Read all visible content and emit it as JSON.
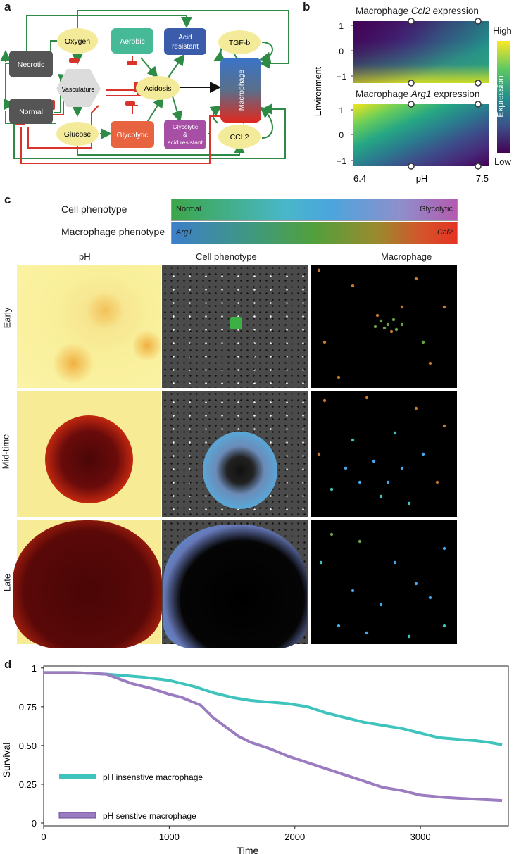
{
  "panels": {
    "a": "a",
    "b": "b",
    "c": "c",
    "d": "d"
  },
  "diagram_a": {
    "nodes": {
      "necrotic": "Necrotic",
      "normal": "Normal",
      "oxygen": "Oxygen",
      "vasculature": "Vasculature",
      "glucose": "Glucose",
      "aerobic": "Aerobic",
      "acidosis": "Acidosis",
      "glycolytic": "Glycolytic",
      "acid_resistant_1": "Acid",
      "acid_resistant_2": "resistant",
      "glyc_acid_1": "Glycolytic",
      "glyc_acid_2": "&",
      "glyc_acid_3": "acid resistant",
      "tgfb": "TGF-b",
      "macrophage": "Macrophage",
      "ccl2": "CCL2"
    },
    "colors": {
      "activation": "#2e8b45",
      "inhibition": "#d9342b",
      "cell_gray": "#555555",
      "aerobic": "#46b996",
      "acid_resistant": "#3b5bab",
      "glycolytic": "#e8633f",
      "glyc_acid": "#a74ea5",
      "yellow_node": "#f4eb9a"
    }
  },
  "heatmaps_b": {
    "top_title_pre": "Macrophage ",
    "top_title_gene": "Ccl2",
    "top_title_post": " expression",
    "bottom_title_pre": "Macrophage ",
    "bottom_title_gene": "Arg1",
    "bottom_title_post": " expression",
    "y_label": "Environment",
    "y_ticks": [
      "1",
      "0",
      "−1"
    ],
    "x_label": "pH",
    "x_ticks": [
      "6.4",
      "7.5"
    ],
    "colorbar_label": "Expression",
    "colorbar_high": "High",
    "colorbar_low": "Low"
  },
  "legend_c": {
    "cell_label": "Cell phenotype",
    "cell_left": "Normal",
    "cell_right": "Glycolytic",
    "mac_label": "Macrophage phenotype",
    "mac_left": "Arg1",
    "mac_right": "Ccl2",
    "columns": [
      "pH",
      "Cell phenotype",
      "Macrophage"
    ],
    "rows": [
      "Early",
      "Mid-time",
      "Late"
    ]
  },
  "chart_data": {
    "type": "line",
    "xlabel": "Time",
    "ylabel": "Survival",
    "xlim": [
      0,
      3700
    ],
    "ylim": [
      0,
      1
    ],
    "x_ticks": [
      "0",
      "1000",
      "2000",
      "3000"
    ],
    "x_tick_values": [
      0,
      1000,
      2000,
      3000
    ],
    "y_ticks": [
      "0",
      "0.25",
      "0.50",
      "0.75",
      "1"
    ],
    "y_tick_values": [
      0,
      0.25,
      0.5,
      0.75,
      1
    ],
    "grid": false,
    "legend_position": "bottom-left",
    "series": [
      {
        "name": "pH insenstive macrophage",
        "color": "#3fc4bd",
        "x": [
          0,
          250,
          500,
          650,
          800,
          1000,
          1200,
          1350,
          1500,
          1650,
          1800,
          1950,
          2100,
          2250,
          2400,
          2550,
          2700,
          2850,
          3000,
          3150,
          3300,
          3450,
          3550,
          3650
        ],
        "y": [
          0.97,
          0.97,
          0.96,
          0.95,
          0.94,
          0.92,
          0.88,
          0.84,
          0.81,
          0.79,
          0.78,
          0.77,
          0.75,
          0.71,
          0.68,
          0.65,
          0.63,
          0.61,
          0.58,
          0.55,
          0.54,
          0.53,
          0.52,
          0.505
        ]
      },
      {
        "name": "pH senstive macrophage",
        "color": "#9b7cc0",
        "x": [
          0,
          250,
          500,
          600,
          700,
          850,
          1000,
          1100,
          1250,
          1350,
          1450,
          1550,
          1650,
          1800,
          1950,
          2100,
          2250,
          2400,
          2550,
          2700,
          2850,
          3000,
          3200,
          3400,
          3650
        ],
        "y": [
          0.97,
          0.97,
          0.96,
          0.93,
          0.9,
          0.87,
          0.83,
          0.81,
          0.76,
          0.68,
          0.62,
          0.56,
          0.52,
          0.48,
          0.43,
          0.39,
          0.35,
          0.31,
          0.27,
          0.23,
          0.21,
          0.18,
          0.165,
          0.155,
          0.145
        ]
      }
    ]
  }
}
